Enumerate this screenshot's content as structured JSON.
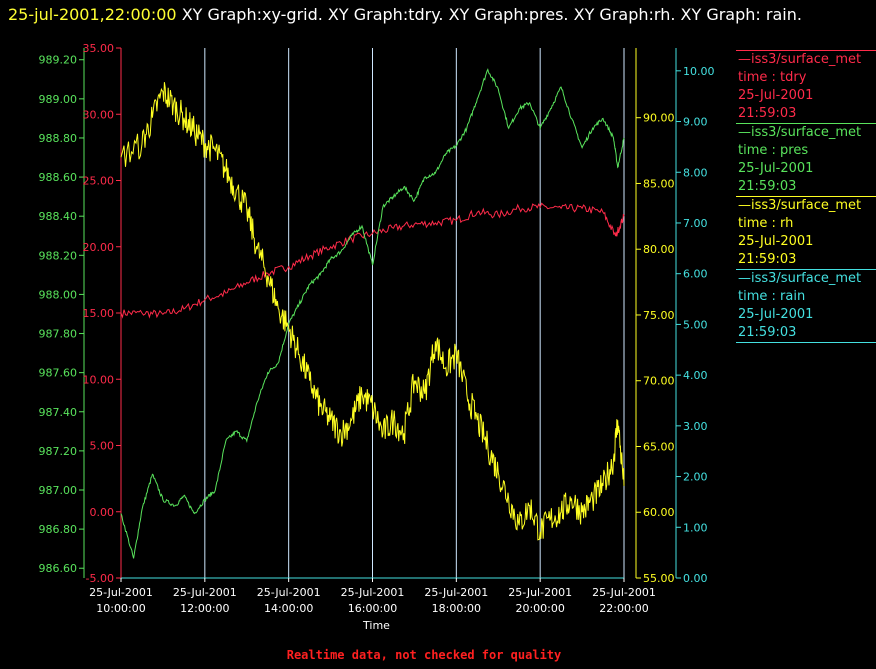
{
  "header": {
    "timestamp": "25-jul-2001,22:00:00",
    "graphs": " XY Graph:xy-grid.  XY Graph:tdry.  XY Graph:pres.  XY Graph:rh.  XY Graph: rain."
  },
  "colors": {
    "tdry": "#ff2b4a",
    "pres": "#59e35c",
    "rh": "#ffff22",
    "rain": "#44e0e0",
    "grid": "#ffffff"
  },
  "legend": [
    {
      "key": "tdry",
      "name": "—iss3/surface_met",
      "label": "time : tdry",
      "date": "25-Jul-2001",
      "time": "21:59:03"
    },
    {
      "key": "pres",
      "name": "—iss3/surface_met",
      "label": "time : pres",
      "date": "25-Jul-2001",
      "time": "21:59:03"
    },
    {
      "key": "rh",
      "name": "—iss3/surface_met",
      "label": "time : rh",
      "date": "25-Jul-2001",
      "time": "21:59:03"
    },
    {
      "key": "rain",
      "name": "—iss3/surface_met",
      "label": "time : rain",
      "date": "25-Jul-2001",
      "time": "21:59:03"
    }
  ],
  "footer": "Realtime data, not checked for quality",
  "chart_data": {
    "type": "line",
    "xlabel": "Time",
    "x_unit": "hours",
    "xlim": [
      10,
      22
    ],
    "x_ticks": [
      {
        "v": 10,
        "date": "25-Jul-2001",
        "time": "10:00:00"
      },
      {
        "v": 12,
        "date": "25-Jul-2001",
        "time": "12:00:00"
      },
      {
        "v": 14,
        "date": "25-Jul-2001",
        "time": "14:00:00"
      },
      {
        "v": 16,
        "date": "25-Jul-2001",
        "time": "16:00:00"
      },
      {
        "v": 18,
        "date": "25-Jul-2001",
        "time": "18:00:00"
      },
      {
        "v": 20,
        "date": "25-Jul-2001",
        "time": "20:00:00"
      },
      {
        "v": 22,
        "date": "25-Jul-2001",
        "time": "22:00:00"
      }
    ],
    "grid": "vertical",
    "axes": {
      "pres": {
        "side": "left-outer",
        "ylim": [
          986.55,
          989.26
        ],
        "ticks": [
          "986.60",
          "986.80",
          "987.00",
          "987.20",
          "987.40",
          "987.60",
          "987.80",
          "988.00",
          "988.20",
          "988.40",
          "988.60",
          "988.80",
          "989.00",
          "989.20"
        ]
      },
      "tdry": {
        "side": "left-inner",
        "ylim": [
          -5,
          35
        ],
        "ticks": [
          "-5.00",
          "0.00",
          "5.00",
          "10.00",
          "15.00",
          "20.00",
          "25.00",
          "30.00",
          "35.00"
        ]
      },
      "rh": {
        "side": "right-inner",
        "ylim": [
          55,
          95.3
        ],
        "ticks": [
          "55.00",
          "60.00",
          "65.00",
          "70.00",
          "75.00",
          "80.00",
          "85.00",
          "90.00"
        ]
      },
      "rain": {
        "side": "right-outer",
        "ylim": [
          0,
          10.45
        ],
        "ticks": [
          "0.00",
          "1.00",
          "2.00",
          "3.00",
          "4.00",
          "5.00",
          "6.00",
          "7.00",
          "8.00",
          "9.00",
          "10.00"
        ]
      }
    },
    "series": [
      {
        "key": "tdry",
        "x": [
          10,
          10.5,
          11,
          11.5,
          12,
          12.5,
          13,
          13.5,
          14,
          14.5,
          15,
          15.5,
          16,
          16.5,
          17,
          17.5,
          18,
          18.5,
          19,
          19.5,
          20,
          20.5,
          21,
          21.5,
          21.8,
          22
        ],
        "y": [
          15.0,
          15.0,
          14.9,
          15.3,
          16.0,
          16.5,
          17.3,
          18.0,
          18.5,
          19.3,
          20.0,
          20.6,
          21.0,
          21.4,
          21.7,
          21.8,
          22.0,
          22.6,
          22.4,
          22.9,
          23.0,
          22.9,
          22.9,
          22.6,
          20.8,
          22.3
        ]
      },
      {
        "key": "pres",
        "x": [
          10,
          10.3,
          10.5,
          10.75,
          11,
          11.3,
          11.5,
          11.75,
          12,
          12.25,
          12.5,
          12.75,
          13,
          13.25,
          13.5,
          13.75,
          14,
          14.25,
          14.5,
          14.75,
          15,
          15.25,
          15.5,
          15.75,
          16,
          16.25,
          16.5,
          16.75,
          17,
          17.25,
          17.5,
          17.75,
          18,
          18.25,
          18.5,
          18.75,
          19,
          19.25,
          19.5,
          19.75,
          20,
          20.25,
          20.5,
          20.75,
          21,
          21.25,
          21.5,
          21.75,
          21.85,
          22
        ],
        "y": [
          986.88,
          986.65,
          986.9,
          987.08,
          986.95,
          986.92,
          986.97,
          986.88,
          986.95,
          987.0,
          987.25,
          987.3,
          987.25,
          987.45,
          987.6,
          987.65,
          987.85,
          987.95,
          988.05,
          988.1,
          988.18,
          988.22,
          988.3,
          988.35,
          988.15,
          988.45,
          988.5,
          988.55,
          988.48,
          988.6,
          988.62,
          988.72,
          988.76,
          988.85,
          989.0,
          989.15,
          989.05,
          988.85,
          988.95,
          988.98,
          988.85,
          988.95,
          989.06,
          988.9,
          988.75,
          988.85,
          988.9,
          988.8,
          988.65,
          988.8
        ]
      },
      {
        "key": "rh",
        "x": [
          10,
          10.5,
          10.75,
          11,
          11.25,
          11.5,
          11.75,
          12,
          12.25,
          12.5,
          12.75,
          13,
          13.25,
          13.5,
          13.75,
          14,
          14.25,
          14.5,
          14.75,
          15,
          15.25,
          15.5,
          15.75,
          16,
          16.25,
          16.5,
          16.75,
          17,
          17.25,
          17.5,
          17.75,
          18,
          18.25,
          18.5,
          18.75,
          19,
          19.25,
          19.5,
          19.75,
          20,
          20.25,
          20.5,
          20.75,
          21,
          21.25,
          21.5,
          21.75,
          21.85,
          22
        ],
        "y": [
          87.0,
          88.0,
          90.0,
          92.0,
          91.0,
          90.0,
          89.0,
          88.0,
          87.5,
          86.0,
          84.5,
          83.0,
          80.0,
          78.0,
          75.5,
          74.0,
          72.0,
          70.0,
          68.0,
          67.0,
          66.0,
          67.0,
          69.0,
          68.0,
          66.0,
          67.0,
          66.0,
          70.0,
          69.0,
          73.0,
          71.0,
          72.0,
          69.0,
          67.0,
          65.0,
          63.0,
          61.0,
          59.0,
          60.5,
          58.5,
          59.5,
          60.0,
          61.0,
          60.0,
          61.0,
          62.0,
          64.0,
          67.0,
          62.0
        ]
      },
      {
        "key": "rain",
        "x": [
          10,
          22
        ],
        "y": [
          0.0,
          0.0
        ]
      }
    ]
  }
}
